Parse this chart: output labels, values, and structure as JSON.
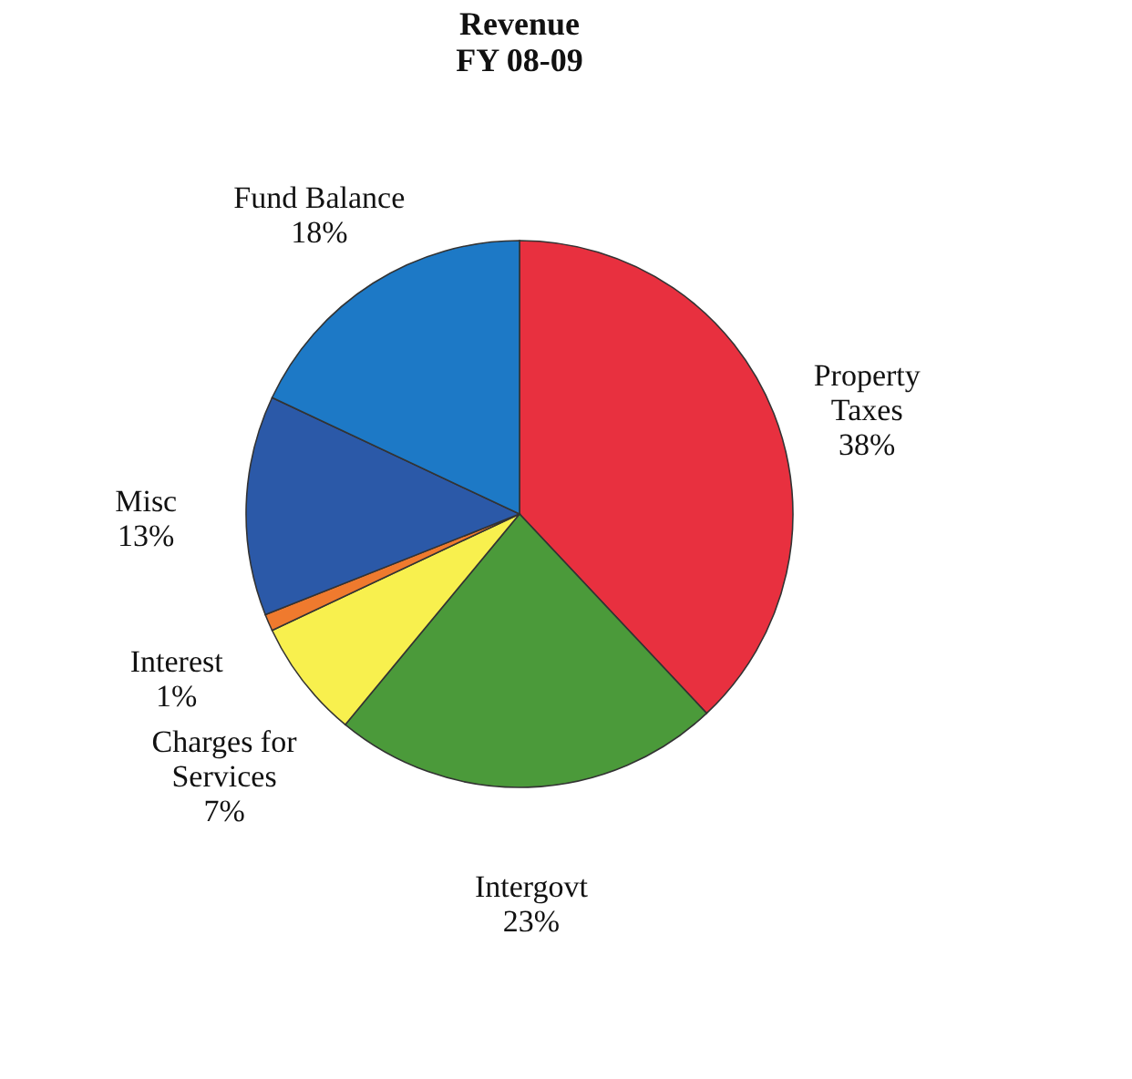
{
  "chart_data": {
    "type": "pie",
    "title": [
      "Revenue",
      "FY 08-09"
    ],
    "categories": [
      "Property Taxes",
      "Intergovt",
      "Charges for Services",
      "Interest",
      "Misc",
      "Fund Balance"
    ],
    "values": [
      38,
      23,
      7,
      1,
      13,
      18
    ],
    "colors": [
      "#e8303f",
      "#4b9a3a",
      "#f8f04e",
      "#ef7a2e",
      "#2b59a8",
      "#1d79c6"
    ],
    "value_labels": [
      "38%",
      "23%",
      "7%",
      "1%",
      "13%",
      "18%"
    ],
    "legend": false
  }
}
